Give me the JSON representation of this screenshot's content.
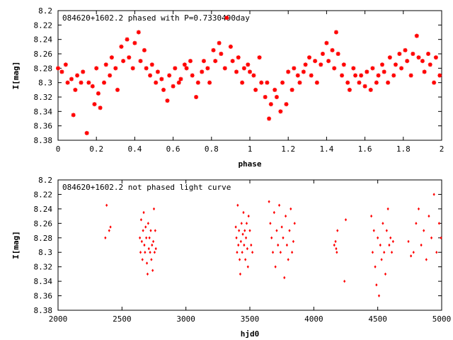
{
  "chart_data": [
    {
      "type": "scatter",
      "title": "084620+1602.2 phased with P=0.7330490day",
      "xlabel": "phase",
      "ylabel": "I[mag]",
      "xlim": [
        0,
        2
      ],
      "ylim": [
        8.2,
        8.38
      ],
      "y_inverted": true,
      "x_ticks": [
        "0",
        "0.2",
        "0.4",
        "0.6",
        "0.8",
        "1",
        "1.2",
        "1.4",
        "1.6",
        "1.8",
        "2"
      ],
      "y_ticks": [
        "8.2",
        "8.22",
        "8.24",
        "8.26",
        "8.28",
        "8.3",
        "8.32",
        "8.34",
        "8.36",
        "8.38"
      ],
      "grid": false,
      "marker": "asterisk",
      "color": "#ff0000",
      "series": [
        {
          "x": [
            0.0,
            0.02,
            0.04,
            0.05,
            0.07,
            0.08,
            0.09,
            0.1,
            0.12,
            0.13,
            0.15,
            0.16,
            0.18,
            0.19,
            0.2,
            0.21,
            0.22,
            0.24,
            0.25,
            0.27,
            0.28,
            0.3,
            0.31,
            0.33,
            0.34,
            0.36,
            0.37,
            0.39,
            0.4,
            0.42,
            0.43,
            0.45,
            0.46,
            0.48,
            0.49,
            0.51,
            0.52,
            0.54,
            0.55,
            0.57,
            0.58,
            0.6,
            0.61,
            0.63,
            0.64,
            0.66,
            0.67,
            0.69,
            0.7,
            0.72,
            0.73,
            0.75,
            0.76,
            0.78,
            0.79,
            0.81,
            0.82,
            0.84,
            0.85,
            0.87,
            0.88,
            0.9,
            0.91,
            0.93,
            0.94,
            0.96,
            0.97,
            0.99,
            1.0,
            1.02,
            1.03,
            1.05,
            1.06,
            1.08,
            1.09,
            1.1,
            1.11,
            1.13,
            1.14,
            1.16,
            1.17,
            1.19,
            1.2,
            1.22,
            1.23,
            1.25,
            1.26,
            1.28,
            1.29,
            1.31,
            1.32,
            1.34,
            1.35,
            1.37,
            1.38,
            1.4,
            1.41,
            1.43,
            1.44,
            1.45,
            1.46,
            1.48,
            1.49,
            1.51,
            1.52,
            1.54,
            1.55,
            1.57,
            1.58,
            1.6,
            1.61,
            1.63,
            1.64,
            1.66,
            1.67,
            1.69,
            1.7,
            1.72,
            1.73,
            1.75,
            1.76,
            1.78,
            1.79,
            1.81,
            1.82,
            1.84,
            1.85,
            1.87,
            1.88,
            1.9,
            1.91,
            1.93,
            1.94,
            1.96,
            1.97,
            1.99
          ],
          "y": [
            8.28,
            8.285,
            8.275,
            8.3,
            8.295,
            8.345,
            8.31,
            8.29,
            8.3,
            8.285,
            8.37,
            8.3,
            8.305,
            8.33,
            8.28,
            8.315,
            8.335,
            8.3,
            8.275,
            8.29,
            8.265,
            8.28,
            8.31,
            8.25,
            8.27,
            8.24,
            8.265,
            8.28,
            8.245,
            8.23,
            8.27,
            8.255,
            8.28,
            8.29,
            8.275,
            8.3,
            8.285,
            8.295,
            8.31,
            8.325,
            8.29,
            8.305,
            8.28,
            8.3,
            8.295,
            8.275,
            8.28,
            8.27,
            8.29,
            8.32,
            8.3,
            8.285,
            8.27,
            8.28,
            8.3,
            8.255,
            8.27,
            8.245,
            8.26,
            8.28,
            8.21,
            8.25,
            8.27,
            8.285,
            8.265,
            8.3,
            8.28,
            8.275,
            8.285,
            8.29,
            8.31,
            8.265,
            8.3,
            8.32,
            8.3,
            8.35,
            8.33,
            8.31,
            8.32,
            8.34,
            8.3,
            8.33,
            8.285,
            8.31,
            8.28,
            8.29,
            8.3,
            8.285,
            8.275,
            8.265,
            8.29,
            8.27,
            8.3,
            8.275,
            8.26,
            8.245,
            8.27,
            8.255,
            8.28,
            8.23,
            8.26,
            8.29,
            8.275,
            8.3,
            8.31,
            8.28,
            8.29,
            8.3,
            8.29,
            8.305,
            8.285,
            8.31,
            8.28,
            8.3,
            8.29,
            8.275,
            8.285,
            8.3,
            8.265,
            8.29,
            8.275,
            8.26,
            8.28,
            8.255,
            8.27,
            8.29,
            8.26,
            8.235,
            8.265,
            8.27,
            8.285,
            8.26,
            8.275,
            8.3,
            8.265,
            8.29
          ]
        }
      ]
    },
    {
      "type": "scatter",
      "title": "084620+1602.2 not phased light curve",
      "xlabel": "hjd0",
      "ylabel": "I[mag]",
      "xlim": [
        2000,
        5000
      ],
      "ylim": [
        8.2,
        8.38
      ],
      "y_inverted": true,
      "x_ticks": [
        "2000",
        "2500",
        "3000",
        "3500",
        "4000",
        "4500",
        "5000"
      ],
      "y_ticks": [
        "8.2",
        "8.22",
        "8.24",
        "8.26",
        "8.28",
        "8.3",
        "8.32",
        "8.34",
        "8.36",
        "8.38"
      ],
      "grid": false,
      "marker": "diamond",
      "color": "#ff0000",
      "series": [
        {
          "x": [
            2370,
            2380,
            2400,
            2410,
            2640,
            2645,
            2650,
            2655,
            2660,
            2665,
            2670,
            2675,
            2680,
            2685,
            2690,
            2695,
            2700,
            2705,
            2710,
            2715,
            2720,
            2725,
            2730,
            2735,
            2740,
            2745,
            2750,
            2755,
            2760,
            2765,
            3390,
            3395,
            3400,
            3405,
            3410,
            3415,
            3420,
            3425,
            3430,
            3435,
            3440,
            3445,
            3450,
            3455,
            3460,
            3465,
            3470,
            3475,
            3480,
            3485,
            3490,
            3500,
            3510,
            3520,
            3650,
            3660,
            3670,
            3680,
            3690,
            3700,
            3710,
            3720,
            3730,
            3740,
            3750,
            3760,
            3770,
            3780,
            3790,
            3800,
            3810,
            3820,
            3830,
            3840,
            3850,
            4160,
            4170,
            4175,
            4180,
            4185,
            4240,
            4250,
            4450,
            4460,
            4470,
            4480,
            4490,
            4500,
            4510,
            4520,
            4530,
            4540,
            4550,
            4560,
            4570,
            4580,
            4590,
            4600,
            4610,
            4620,
            4740,
            4760,
            4780,
            4800,
            4820,
            4840,
            4860,
            4880,
            4900,
            4920,
            4940,
            4960,
            4980,
            4995
          ],
          "y": [
            8.28,
            8.235,
            8.27,
            8.265,
            8.28,
            8.3,
            8.255,
            8.285,
            8.31,
            8.27,
            8.245,
            8.29,
            8.3,
            8.265,
            8.28,
            8.315,
            8.33,
            8.26,
            8.295,
            8.28,
            8.3,
            8.27,
            8.31,
            8.29,
            8.325,
            8.285,
            8.24,
            8.3,
            8.27,
            8.295,
            8.265,
            8.28,
            8.3,
            8.235,
            8.29,
            8.27,
            8.31,
            8.33,
            8.285,
            8.26,
            8.3,
            8.275,
            8.245,
            8.29,
            8.27,
            8.31,
            8.28,
            8.26,
            8.295,
            8.32,
            8.25,
            8.27,
            8.29,
            8.3,
            8.23,
            8.26,
            8.28,
            8.3,
            8.245,
            8.32,
            8.27,
            8.29,
            8.235,
            8.3,
            8.265,
            8.28,
            8.335,
            8.25,
            8.29,
            8.31,
            8.27,
            8.24,
            8.3,
            8.285,
            8.26,
            8.29,
            8.285,
            8.295,
            8.3,
            8.27,
            8.34,
            8.255,
            8.25,
            8.3,
            8.27,
            8.32,
            8.345,
            8.28,
            8.36,
            8.29,
            8.31,
            8.26,
            8.3,
            8.33,
            8.27,
            8.24,
            8.29,
            8.28,
            8.3,
            8.285,
            8.285,
            8.305,
            8.3,
            8.26,
            8.24,
            8.29,
            8.27,
            8.31,
            8.25,
            8.28,
            8.22,
            8.3,
            8.26,
            8.28
          ]
        }
      ]
    }
  ]
}
